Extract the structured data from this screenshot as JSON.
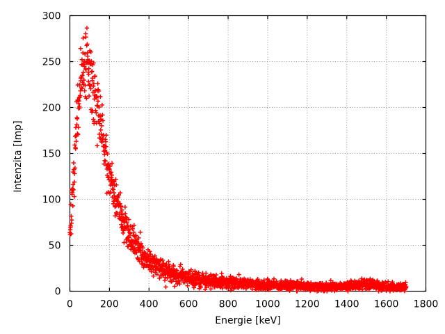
{
  "figure": {
    "background": "#ffffff"
  },
  "chart_data": {
    "type": "scatter",
    "title": "",
    "xlabel": "Energie [keV]",
    "ylabel": "Intenzita [Imp]",
    "xlim": [
      0,
      1800
    ],
    "ylim": [
      0,
      300
    ],
    "xticks": [
      0,
      200,
      400,
      600,
      800,
      1000,
      1200,
      1400,
      1600,
      1800
    ],
    "yticks": [
      0,
      50,
      100,
      150,
      200,
      250,
      300
    ],
    "grid": "dotted",
    "grid_color": "#9a9a9a",
    "axis_color": "#000000",
    "legend": "none",
    "marker": {
      "shape": "plus",
      "color": "#ff0000",
      "size": 6.4,
      "stroke_width": 1.5
    },
    "series": [
      {
        "name": "spectrum",
        "x_start": 0,
        "x_end": 1700,
        "n_points": 1701,
        "noise": {
          "model": "gaussian-sqrt",
          "coef": 1.1,
          "seed": 7
        },
        "mean_profile": [
          [
            0,
            68
          ],
          [
            5,
            76
          ],
          [
            10,
            88
          ],
          [
            15,
            103
          ],
          [
            20,
            122
          ],
          [
            25,
            140
          ],
          [
            30,
            158
          ],
          [
            35,
            175
          ],
          [
            40,
            190
          ],
          [
            45,
            206
          ],
          [
            50,
            218
          ],
          [
            55,
            227
          ],
          [
            60,
            234
          ],
          [
            70,
            242
          ],
          [
            80,
            246
          ],
          [
            90,
            243
          ],
          [
            100,
            237
          ],
          [
            110,
            229
          ],
          [
            120,
            218
          ],
          [
            130,
            208
          ],
          [
            140,
            199
          ],
          [
            150,
            187
          ],
          [
            160,
            176
          ],
          [
            170,
            163
          ],
          [
            180,
            151
          ],
          [
            190,
            140
          ],
          [
            200,
            130
          ],
          [
            210,
            121
          ],
          [
            220,
            112
          ],
          [
            230,
            104
          ],
          [
            240,
            97
          ],
          [
            250,
            90
          ],
          [
            260,
            84
          ],
          [
            270,
            78
          ],
          [
            280,
            73
          ],
          [
            290,
            68
          ],
          [
            300,
            63
          ],
          [
            310,
            59
          ],
          [
            320,
            55
          ],
          [
            330,
            51
          ],
          [
            340,
            48
          ],
          [
            350,
            45
          ],
          [
            360,
            42
          ],
          [
            370,
            40
          ],
          [
            380,
            38
          ],
          [
            390,
            36
          ],
          [
            400,
            34
          ],
          [
            415,
            31
          ],
          [
            430,
            29
          ],
          [
            445,
            27
          ],
          [
            460,
            25
          ],
          [
            480,
            23
          ],
          [
            500,
            21
          ],
          [
            525,
            19
          ],
          [
            550,
            17.5
          ],
          [
            575,
            16
          ],
          [
            600,
            15
          ],
          [
            625,
            14
          ],
          [
            650,
            13
          ],
          [
            675,
            12.5
          ],
          [
            700,
            12
          ],
          [
            725,
            11
          ],
          [
            750,
            10.5
          ],
          [
            775,
            10
          ],
          [
            800,
            9.5
          ],
          [
            850,
            8.7
          ],
          [
            900,
            8
          ],
          [
            950,
            7.5
          ],
          [
            1000,
            7
          ],
          [
            1050,
            6.5
          ],
          [
            1100,
            6
          ],
          [
            1150,
            5.7
          ],
          [
            1200,
            5.4
          ],
          [
            1250,
            5.1
          ],
          [
            1300,
            5
          ],
          [
            1350,
            5
          ],
          [
            1400,
            5.3
          ],
          [
            1440,
            6.5
          ],
          [
            1480,
            7.5
          ],
          [
            1520,
            7
          ],
          [
            1560,
            6
          ],
          [
            1600,
            5
          ],
          [
            1650,
            4.3
          ],
          [
            1700,
            3.8
          ]
        ]
      }
    ]
  }
}
